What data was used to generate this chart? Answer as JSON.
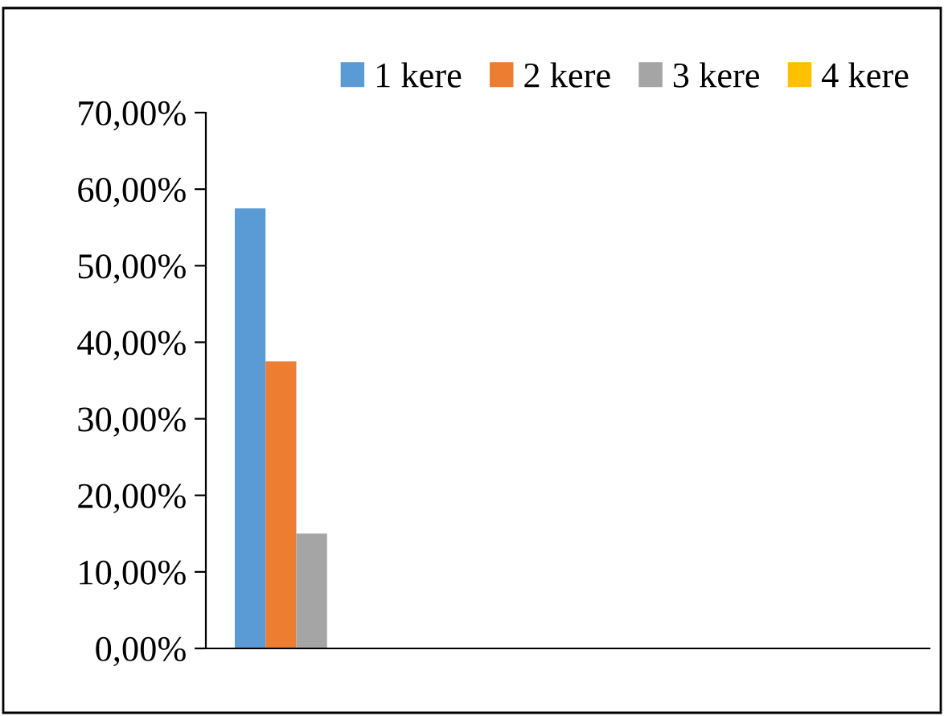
{
  "chart_data": {
    "type": "bar",
    "categories": [
      null,
      null,
      null,
      null
    ],
    "series": [
      {
        "name": "1 kere",
        "color": "#5b9bd5",
        "values": [
          57.5,
          null,
          null,
          null
        ]
      },
      {
        "name": "2 kere",
        "color": "#ed7d31",
        "values": [
          37.5,
          null,
          null,
          null
        ]
      },
      {
        "name": "3 kere",
        "color": "#a5a5a5",
        "values": [
          15,
          null,
          null,
          null
        ]
      },
      {
        "name": "4 kere",
        "color": "#ffc000",
        "values": [
          0,
          null,
          null,
          null
        ]
      }
    ],
    "ylim": [
      0,
      70
    ],
    "yticks": [
      {
        "value": 0,
        "label": "0,00%"
      },
      {
        "value": 10,
        "label": "10,00%"
      },
      {
        "value": 20,
        "label": "20,00%"
      },
      {
        "value": 30,
        "label": "30,00%"
      },
      {
        "value": 40,
        "label": "40,00%"
      },
      {
        "value": 50,
        "label": "50,00%"
      },
      {
        "value": 60,
        "label": "60,00%"
      },
      {
        "value": 70,
        "label": "70,00%"
      }
    ],
    "grid": false,
    "legend": "top"
  }
}
